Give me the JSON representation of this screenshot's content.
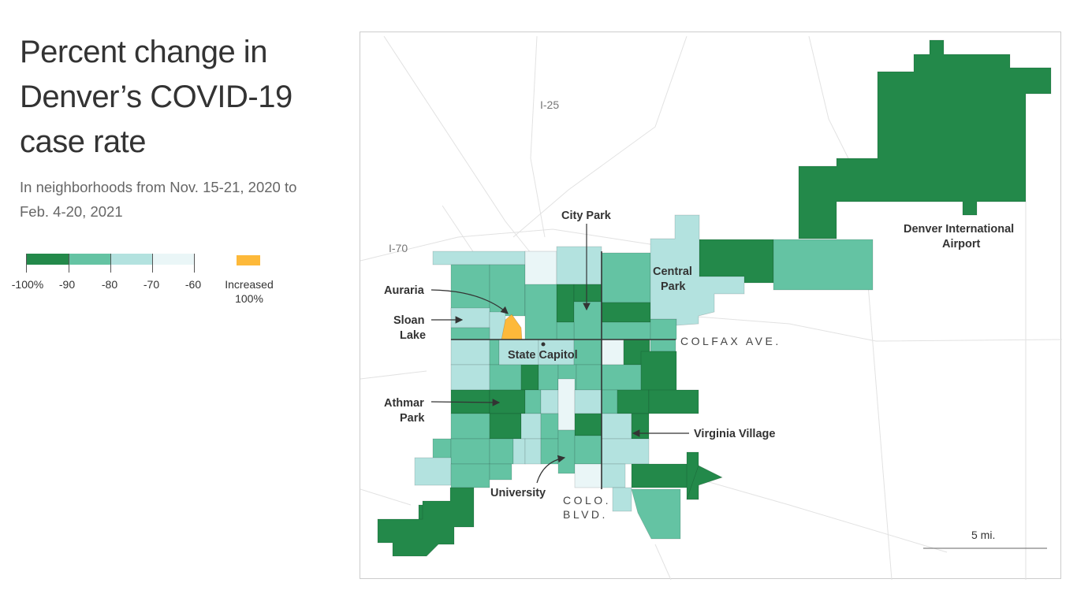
{
  "title": "Percent change in Denver’s COVID-19 case rate",
  "subtitle": "In neighborhoods from Nov. 15-21, 2020 to Feb. 4-20, 2021",
  "legend": {
    "bins": [
      {
        "from": -100,
        "to": -90,
        "color": "#23894a"
      },
      {
        "from": -90,
        "to": -80,
        "color": "#64c3a3"
      },
      {
        "from": -80,
        "to": -70,
        "color": "#b3e2df"
      },
      {
        "from": -70,
        "to": -60,
        "color": "#eaf6f7"
      }
    ],
    "tick_labels": [
      "-100%",
      "-90",
      "-80",
      "-70",
      "-60"
    ],
    "increased": {
      "label_line1": "Increased",
      "label_line2": "100%",
      "color": "#fdb93a"
    }
  },
  "map": {
    "roads": {
      "i25": "I-25",
      "i70": "I-70",
      "colfax": "COLFAX AVE.",
      "colo1": "COLO.",
      "colo2": "BLVD."
    },
    "labels": {
      "city_park": "City Park",
      "central_park_1": "Central",
      "central_park_2": "Park",
      "auraria": "Auraria",
      "sloan_1": "Sloan",
      "sloan_2": "Lake",
      "state_capitol": "State Capitol",
      "athmar_1": "Athmar",
      "athmar_2": "Park",
      "virginia_village": "Virginia Village",
      "university": "University",
      "dia_1": "Denver International",
      "dia_2": "Airport"
    },
    "scale": "5 mi."
  }
}
